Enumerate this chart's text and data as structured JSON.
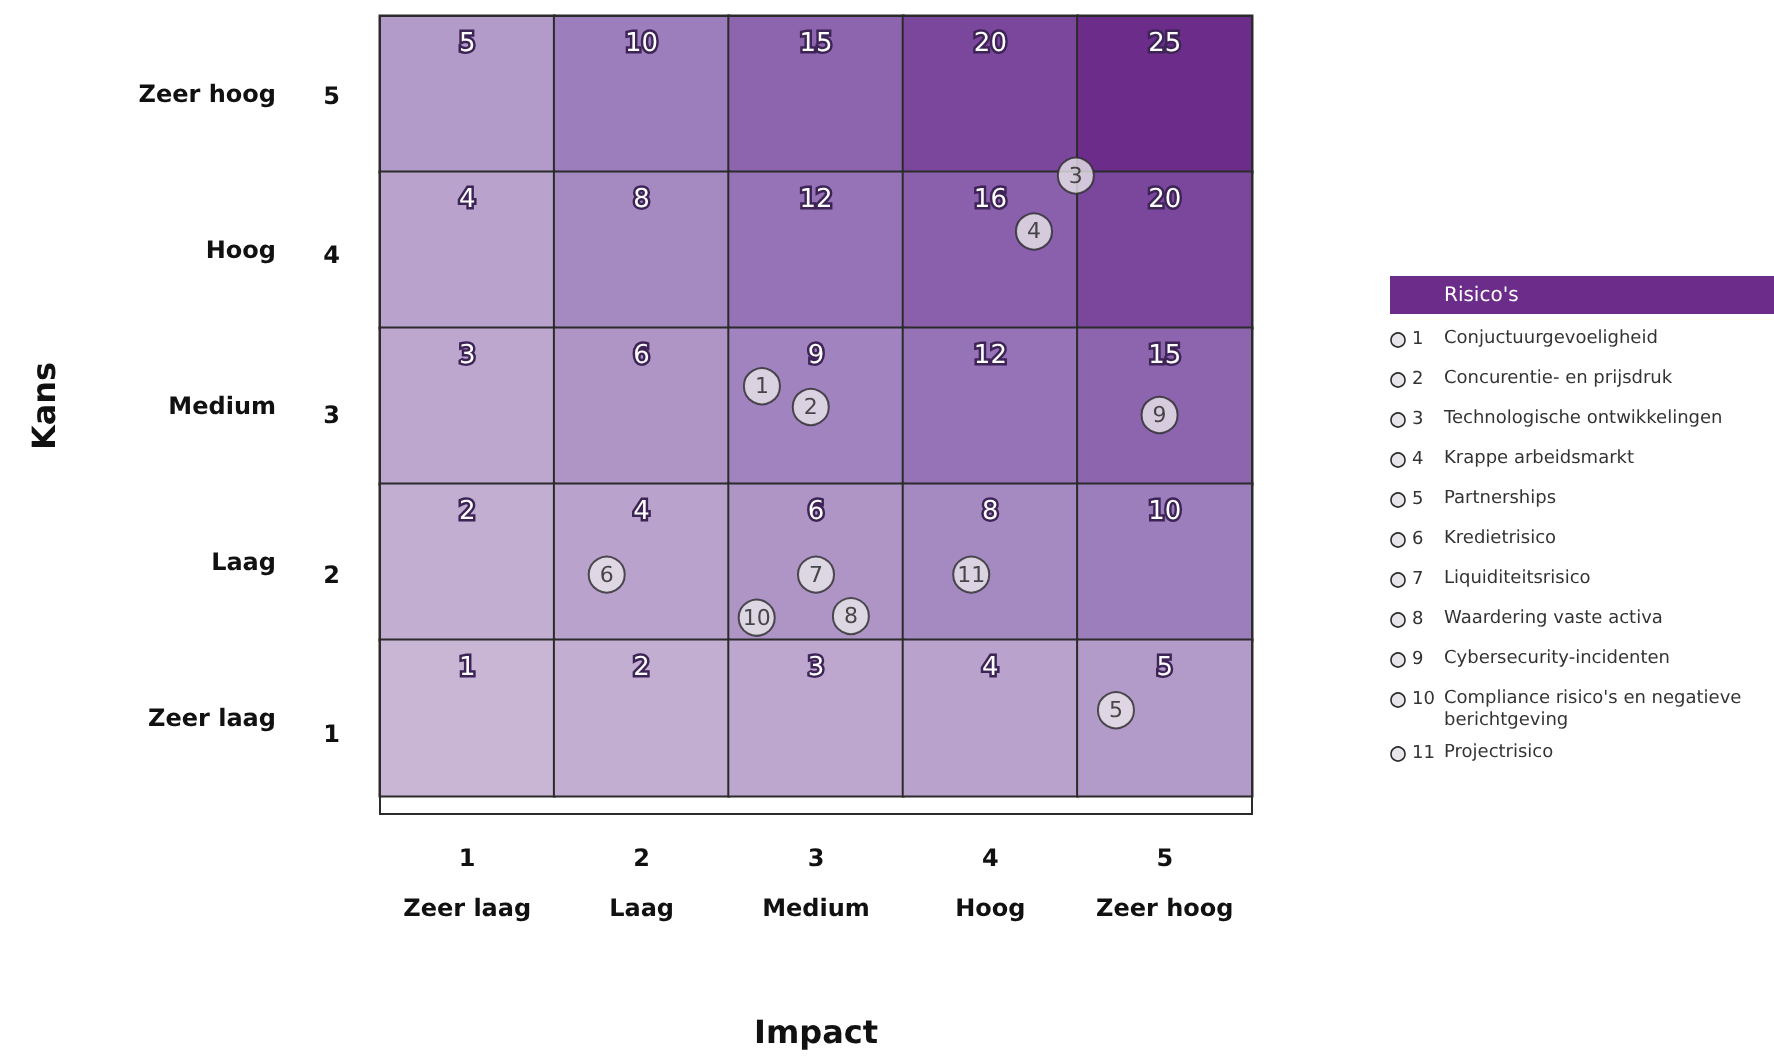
{
  "chart_data": [
    {
      "type": "heatmap",
      "xlabel": "Impact",
      "ylabel": "Kans",
      "categories": [
        "Zeer laag",
        "Laag",
        "Medium",
        "Hoog",
        "Zeer hoog"
      ],
      "y_categories": [
        "5",
        "4",
        "3",
        "2",
        "1"
      ],
      "y2_categories": [
        "Zeer hoog",
        "Hoog",
        "Medium",
        "Laag",
        "Zeer laag"
      ],
      "cells": [
        [
          5,
          10,
          15,
          20,
          25
        ],
        [
          4,
          8,
          12,
          16,
          20
        ],
        [
          3,
          6,
          9,
          12,
          15
        ],
        [
          2,
          4,
          6,
          8,
          10
        ],
        [
          1,
          2,
          3,
          4,
          5
        ]
      ],
      "data_labels": true,
      "tick_labels": "x"
    },
    {
      "type": "scatter",
      "xlim": [
        0.5,
        5.5
      ],
      "ylim": [
        0.5,
        5.5
      ],
      "xticks": [
        1,
        2,
        3,
        4,
        5
      ],
      "yticks": [
        1,
        2,
        3,
        4,
        5
      ],
      "legend": "right",
      "legend_title": "Risico's",
      "marker": "circle",
      "annotations": [
        {
          "text": "1",
          "x": 2.69,
          "y": 3.18
        },
        {
          "text": "2",
          "x": 2.97,
          "y": 3.05
        },
        {
          "text": "3",
          "x": 4.49,
          "y": 4.5
        },
        {
          "text": "4",
          "x": 4.25,
          "y": 4.15
        },
        {
          "text": "5",
          "x": 4.72,
          "y": 1.15
        },
        {
          "text": "6",
          "x": 1.8,
          "y": 2.0
        },
        {
          "text": "7",
          "x": 3.0,
          "y": 2.0
        },
        {
          "text": "8",
          "x": 3.2,
          "y": 1.74
        },
        {
          "text": "9",
          "x": 4.97,
          "y": 3.0
        },
        {
          "text": "10",
          "x": 2.66,
          "y": 1.73
        },
        {
          "text": "11",
          "x": 3.89,
          "y": 2.0
        }
      ],
      "series": [
        {
          "name": "Conjuctuurgevoeligheid",
          "color": "#e8e6ea",
          "x": [
            2.69
          ],
          "values": [
            3.18
          ]
        },
        {
          "name": "Concurentie- en prijsdruk",
          "color": "#e8e6ea",
          "x": [
            2.97
          ],
          "values": [
            3.05
          ]
        },
        {
          "name": "Technologische ontwikkelingen",
          "color": "#e8e6ea",
          "x": [
            4.49
          ],
          "values": [
            4.5
          ]
        },
        {
          "name": "Krappe arbeidsmarkt",
          "color": "#e8e6ea",
          "x": [
            4.25
          ],
          "values": [
            4.15
          ]
        },
        {
          "name": "Partnerships",
          "color": "#e8e6ea",
          "x": [
            4.72
          ],
          "values": [
            1.15
          ]
        },
        {
          "name": "Kredietrisico",
          "color": "#e8e6ea",
          "x": [
            1.8
          ],
          "values": [
            2.0
          ]
        },
        {
          "name": "Liquiditeitsrisico",
          "color": "#e8e6ea",
          "x": [
            3.0
          ],
          "values": [
            2.0
          ]
        },
        {
          "name": "Waardering vaste activa",
          "color": "#e8e6ea",
          "x": [
            3.2
          ],
          "values": [
            1.74
          ]
        },
        {
          "name": "Cybersecurity-incidenten",
          "color": "#e8e6ea",
          "x": [
            4.97
          ],
          "values": [
            3.0
          ]
        },
        {
          "name": "Compliance risico's en negatieve berichtgeving",
          "color": "#e8e6ea",
          "x": [
            2.66
          ],
          "values": [
            1.73
          ]
        },
        {
          "name": "Projectrisico",
          "color": "#e8e6ea",
          "x": [
            3.89
          ],
          "values": [
            2.0
          ]
        }
      ]
    }
  ]
}
